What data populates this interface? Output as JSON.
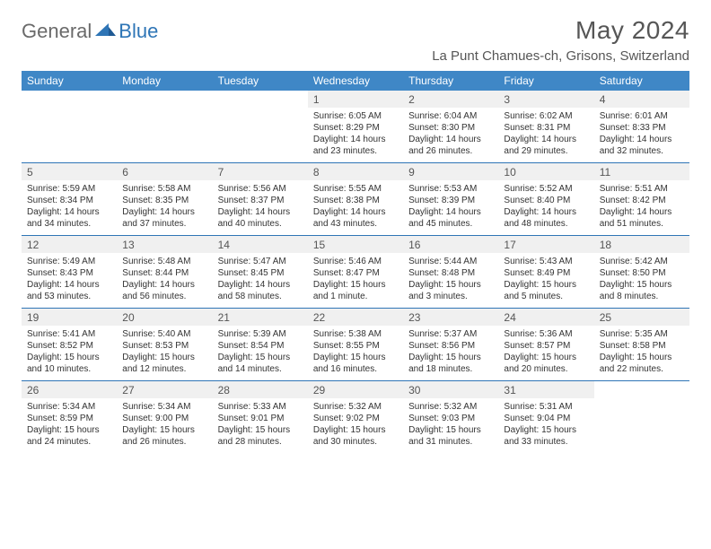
{
  "brand": {
    "part1": "General",
    "part2": "Blue"
  },
  "title": "May 2024",
  "location": "La Punt Chamues-ch, Grisons, Switzerland",
  "colors": {
    "header_bg": "#3f87c6",
    "header_text": "#ffffff",
    "daynum_bg": "#f0f0f0",
    "rule": "#2e75b6",
    "brand_gray": "#6a6a6a",
    "brand_blue": "#2e75b6",
    "page_bg": "#ffffff",
    "text": "#333333",
    "title_color": "#565656"
  },
  "typography": {
    "title_fontsize": 28,
    "location_fontsize": 15,
    "dow_fontsize": 12,
    "daynum_fontsize": 12,
    "detail_fontsize": 10,
    "logo_fontsize": 22
  },
  "layout": {
    "cols": 7,
    "col_width_pct": 14.28
  },
  "dow": [
    "Sunday",
    "Monday",
    "Tuesday",
    "Wednesday",
    "Thursday",
    "Friday",
    "Saturday"
  ],
  "weeks": [
    [
      null,
      null,
      null,
      {
        "n": "1",
        "sr": "Sunrise: 6:05 AM",
        "ss": "Sunset: 8:29 PM",
        "d1": "Daylight: 14 hours",
        "d2": "and 23 minutes."
      },
      {
        "n": "2",
        "sr": "Sunrise: 6:04 AM",
        "ss": "Sunset: 8:30 PM",
        "d1": "Daylight: 14 hours",
        "d2": "and 26 minutes."
      },
      {
        "n": "3",
        "sr": "Sunrise: 6:02 AM",
        "ss": "Sunset: 8:31 PM",
        "d1": "Daylight: 14 hours",
        "d2": "and 29 minutes."
      },
      {
        "n": "4",
        "sr": "Sunrise: 6:01 AM",
        "ss": "Sunset: 8:33 PM",
        "d1": "Daylight: 14 hours",
        "d2": "and 32 minutes."
      }
    ],
    [
      {
        "n": "5",
        "sr": "Sunrise: 5:59 AM",
        "ss": "Sunset: 8:34 PM",
        "d1": "Daylight: 14 hours",
        "d2": "and 34 minutes."
      },
      {
        "n": "6",
        "sr": "Sunrise: 5:58 AM",
        "ss": "Sunset: 8:35 PM",
        "d1": "Daylight: 14 hours",
        "d2": "and 37 minutes."
      },
      {
        "n": "7",
        "sr": "Sunrise: 5:56 AM",
        "ss": "Sunset: 8:37 PM",
        "d1": "Daylight: 14 hours",
        "d2": "and 40 minutes."
      },
      {
        "n": "8",
        "sr": "Sunrise: 5:55 AM",
        "ss": "Sunset: 8:38 PM",
        "d1": "Daylight: 14 hours",
        "d2": "and 43 minutes."
      },
      {
        "n": "9",
        "sr": "Sunrise: 5:53 AM",
        "ss": "Sunset: 8:39 PM",
        "d1": "Daylight: 14 hours",
        "d2": "and 45 minutes."
      },
      {
        "n": "10",
        "sr": "Sunrise: 5:52 AM",
        "ss": "Sunset: 8:40 PM",
        "d1": "Daylight: 14 hours",
        "d2": "and 48 minutes."
      },
      {
        "n": "11",
        "sr": "Sunrise: 5:51 AM",
        "ss": "Sunset: 8:42 PM",
        "d1": "Daylight: 14 hours",
        "d2": "and 51 minutes."
      }
    ],
    [
      {
        "n": "12",
        "sr": "Sunrise: 5:49 AM",
        "ss": "Sunset: 8:43 PM",
        "d1": "Daylight: 14 hours",
        "d2": "and 53 minutes."
      },
      {
        "n": "13",
        "sr": "Sunrise: 5:48 AM",
        "ss": "Sunset: 8:44 PM",
        "d1": "Daylight: 14 hours",
        "d2": "and 56 minutes."
      },
      {
        "n": "14",
        "sr": "Sunrise: 5:47 AM",
        "ss": "Sunset: 8:45 PM",
        "d1": "Daylight: 14 hours",
        "d2": "and 58 minutes."
      },
      {
        "n": "15",
        "sr": "Sunrise: 5:46 AM",
        "ss": "Sunset: 8:47 PM",
        "d1": "Daylight: 15 hours",
        "d2": "and 1 minute."
      },
      {
        "n": "16",
        "sr": "Sunrise: 5:44 AM",
        "ss": "Sunset: 8:48 PM",
        "d1": "Daylight: 15 hours",
        "d2": "and 3 minutes."
      },
      {
        "n": "17",
        "sr": "Sunrise: 5:43 AM",
        "ss": "Sunset: 8:49 PM",
        "d1": "Daylight: 15 hours",
        "d2": "and 5 minutes."
      },
      {
        "n": "18",
        "sr": "Sunrise: 5:42 AM",
        "ss": "Sunset: 8:50 PM",
        "d1": "Daylight: 15 hours",
        "d2": "and 8 minutes."
      }
    ],
    [
      {
        "n": "19",
        "sr": "Sunrise: 5:41 AM",
        "ss": "Sunset: 8:52 PM",
        "d1": "Daylight: 15 hours",
        "d2": "and 10 minutes."
      },
      {
        "n": "20",
        "sr": "Sunrise: 5:40 AM",
        "ss": "Sunset: 8:53 PM",
        "d1": "Daylight: 15 hours",
        "d2": "and 12 minutes."
      },
      {
        "n": "21",
        "sr": "Sunrise: 5:39 AM",
        "ss": "Sunset: 8:54 PM",
        "d1": "Daylight: 15 hours",
        "d2": "and 14 minutes."
      },
      {
        "n": "22",
        "sr": "Sunrise: 5:38 AM",
        "ss": "Sunset: 8:55 PM",
        "d1": "Daylight: 15 hours",
        "d2": "and 16 minutes."
      },
      {
        "n": "23",
        "sr": "Sunrise: 5:37 AM",
        "ss": "Sunset: 8:56 PM",
        "d1": "Daylight: 15 hours",
        "d2": "and 18 minutes."
      },
      {
        "n": "24",
        "sr": "Sunrise: 5:36 AM",
        "ss": "Sunset: 8:57 PM",
        "d1": "Daylight: 15 hours",
        "d2": "and 20 minutes."
      },
      {
        "n": "25",
        "sr": "Sunrise: 5:35 AM",
        "ss": "Sunset: 8:58 PM",
        "d1": "Daylight: 15 hours",
        "d2": "and 22 minutes."
      }
    ],
    [
      {
        "n": "26",
        "sr": "Sunrise: 5:34 AM",
        "ss": "Sunset: 8:59 PM",
        "d1": "Daylight: 15 hours",
        "d2": "and 24 minutes."
      },
      {
        "n": "27",
        "sr": "Sunrise: 5:34 AM",
        "ss": "Sunset: 9:00 PM",
        "d1": "Daylight: 15 hours",
        "d2": "and 26 minutes."
      },
      {
        "n": "28",
        "sr": "Sunrise: 5:33 AM",
        "ss": "Sunset: 9:01 PM",
        "d1": "Daylight: 15 hours",
        "d2": "and 28 minutes."
      },
      {
        "n": "29",
        "sr": "Sunrise: 5:32 AM",
        "ss": "Sunset: 9:02 PM",
        "d1": "Daylight: 15 hours",
        "d2": "and 30 minutes."
      },
      {
        "n": "30",
        "sr": "Sunrise: 5:32 AM",
        "ss": "Sunset: 9:03 PM",
        "d1": "Daylight: 15 hours",
        "d2": "and 31 minutes."
      },
      {
        "n": "31",
        "sr": "Sunrise: 5:31 AM",
        "ss": "Sunset: 9:04 PM",
        "d1": "Daylight: 15 hours",
        "d2": "and 33 minutes."
      },
      null
    ]
  ]
}
